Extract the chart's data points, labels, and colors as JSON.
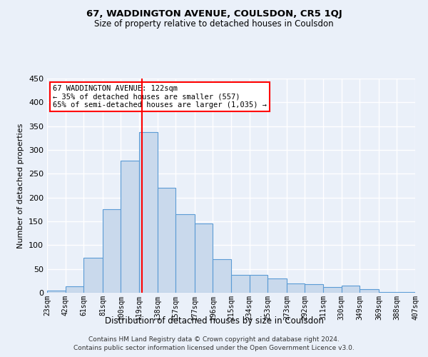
{
  "title": "67, WADDINGTON AVENUE, COULSDON, CR5 1QJ",
  "subtitle": "Size of property relative to detached houses in Coulsdon",
  "xlabel": "Distribution of detached houses by size in Coulsdon",
  "ylabel": "Number of detached properties",
  "bar_color": "#c9d9ec",
  "bar_edge_color": "#5b9bd5",
  "bins": [
    23,
    42,
    61,
    81,
    100,
    119,
    138,
    157,
    177,
    196,
    215,
    234,
    253,
    273,
    292,
    311,
    330,
    349,
    369,
    388,
    407
  ],
  "counts": [
    5,
    13,
    73,
    175,
    278,
    338,
    220,
    165,
    145,
    70,
    37,
    37,
    30,
    20,
    18,
    12,
    15,
    7,
    1,
    2
  ],
  "vline_x": 122,
  "vline_color": "red",
  "annotation_text": "67 WADDINGTON AVENUE: 122sqm\n← 35% of detached houses are smaller (557)\n65% of semi-detached houses are larger (1,035) →",
  "annotation_box_color": "white",
  "annotation_box_edge": "red",
  "footer_line1": "Contains HM Land Registry data © Crown copyright and database right 2024.",
  "footer_line2": "Contains public sector information licensed under the Open Government Licence v3.0.",
  "bg_color": "#eaf0f9",
  "grid_color": "white",
  "ylim": [
    0,
    450
  ],
  "yticks": [
    0,
    50,
    100,
    150,
    200,
    250,
    300,
    350,
    400,
    450
  ]
}
